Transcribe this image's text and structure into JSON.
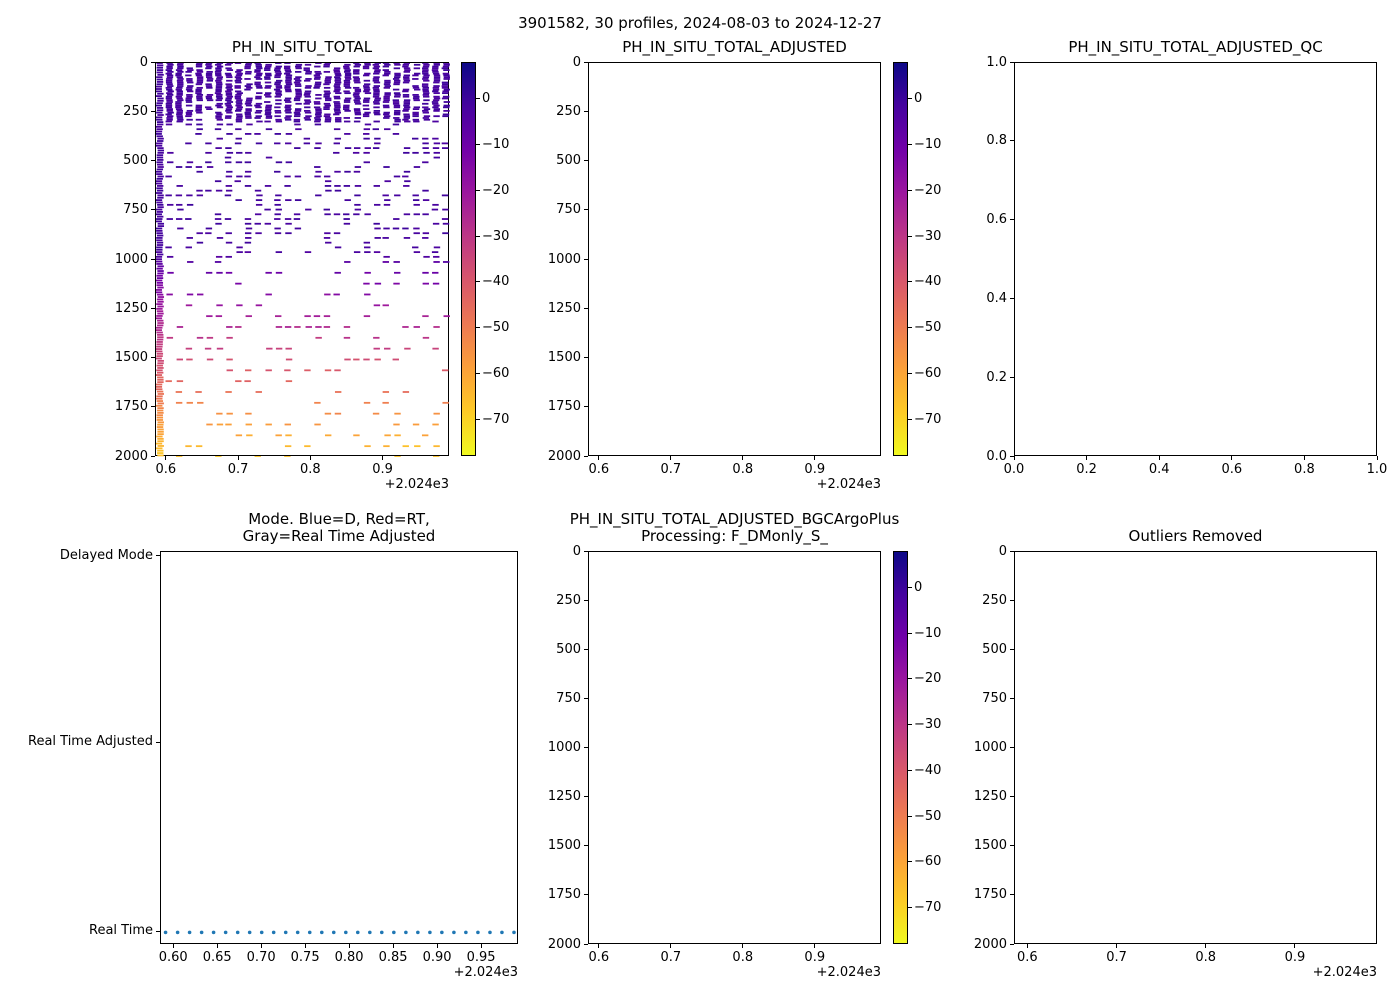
{
  "figure": {
    "suptitle": "3901582, 30 profiles, 2024-08-03 to 2024-12-27",
    "background": "#ffffff"
  },
  "colormap": {
    "stops": [
      "#0d0887",
      "#46039f",
      "#7201a8",
      "#9c179e",
      "#bd3786",
      "#d8576b",
      "#ed7953",
      "#fb9f3a",
      "#fdca26",
      "#f0f921"
    ],
    "vmin": -78,
    "vmax": 8,
    "tick_values": [
      0,
      -10,
      -20,
      -30,
      -40,
      -50,
      -60,
      -70
    ],
    "tick_labels": [
      "0",
      "−10",
      "−20",
      "−30",
      "−40",
      "−50",
      "−60",
      "−70"
    ]
  },
  "profiles": {
    "count": 30,
    "date_range": "2024-08-03 to 2024-12-27",
    "times": [
      2024.5902,
      2024.6039,
      2024.6175,
      2024.6312,
      2024.6448,
      2024.6585,
      2024.6722,
      2024.6858,
      2024.6995,
      2024.7131,
      2024.7268,
      2024.7404,
      2024.7541,
      2024.7678,
      2024.7814,
      2024.7951,
      2024.8087,
      2024.8224,
      2024.836,
      2024.8497,
      2024.8634,
      2024.877,
      2024.8907,
      2024.9043,
      2024.918,
      2024.9316,
      2024.9453,
      2024.959,
      2024.9726,
      2024.9863
    ]
  },
  "chart_data": [
    {
      "type": "scatter",
      "title": "PH_IN_SITU_TOTAL",
      "marker": "_",
      "xlim": [
        2024.585,
        2024.992
      ],
      "xticks": [
        2024.6,
        2024.7,
        2024.8,
        2024.9
      ],
      "xtick_labels": [
        "0.6",
        "0.7",
        "0.8",
        "0.9"
      ],
      "x_offset_label": "+2.024e3",
      "ylim": [
        2000,
        0
      ],
      "yticks": [
        0,
        250,
        500,
        750,
        1000,
        1250,
        1500,
        1750,
        2000
      ],
      "ytick_labels": [
        "0",
        "250",
        "500",
        "750",
        "1000",
        "1250",
        "1500",
        "1750",
        "2000"
      ],
      "has_colorbar": true,
      "points_note": "30 profile columns of horizontal dash marks; dense 0-300 dbar (values near 0, dark navy), sparser below; leftmost profile sampled full depth 0-2000 dbar with values grading from ~0 (navy) through ~-20 (purple), ~-35 (magenta) to ~-65 (orange) near 2000 dbar",
      "generation": {
        "seed": 42,
        "full_profiles": [
          0
        ],
        "full_step": 12,
        "dense_upper_profiles": [
          1,
          2
        ],
        "bands": [
          {
            "from": 0,
            "to": 300,
            "step": 9,
            "prob": 0.72
          },
          {
            "from": 312,
            "to": 1000,
            "step": 24,
            "prob": 0.32
          },
          {
            "from": 1010,
            "to": 2000,
            "step": 55,
            "prob": 0.28
          }
        ],
        "x_jitter": 0.003,
        "value_model": {
          "shallow_limit": 950,
          "shallow_noise": 3,
          "slope_per_m": 0.0629,
          "deep_noise": 4
        }
      }
    },
    {
      "type": "scatter",
      "title": "PH_IN_SITU_TOTAL_ADJUSTED",
      "points": [],
      "xlim": [
        2024.585,
        2024.992
      ],
      "xticks": [
        2024.6,
        2024.7,
        2024.8,
        2024.9
      ],
      "xtick_labels": [
        "0.6",
        "0.7",
        "0.8",
        "0.9"
      ],
      "x_offset_label": "+2.024e3",
      "ylim": [
        2000,
        0
      ],
      "yticks": [
        0,
        250,
        500,
        750,
        1000,
        1250,
        1500,
        1750,
        2000
      ],
      "ytick_labels": [
        "0",
        "250",
        "500",
        "750",
        "1000",
        "1250",
        "1500",
        "1750",
        "2000"
      ],
      "has_colorbar": true
    },
    {
      "type": "scatter",
      "title": "PH_IN_SITU_TOTAL_ADJUSTED_QC",
      "points": [],
      "xlim": [
        0,
        1
      ],
      "xticks": [
        0,
        0.2,
        0.4,
        0.6,
        0.8,
        1.0
      ],
      "xtick_labels": [
        "0.0",
        "0.2",
        "0.4",
        "0.6",
        "0.8",
        "1.0"
      ],
      "ylim": [
        0,
        1
      ],
      "yticks": [
        1.0,
        0.8,
        0.6,
        0.4,
        0.2,
        0.0
      ],
      "ytick_labels": [
        "1.0",
        "0.8",
        "0.6",
        "0.4",
        "0.2",
        "0.0"
      ],
      "has_colorbar": false
    },
    {
      "type": "scatter",
      "title": "Mode. Blue=D, Red=RT,\nGray=Real Time Adjusted",
      "y_categories": [
        "Delayed Mode",
        "Real Time Adjusted",
        "Real Time"
      ],
      "points_category": "Real Time",
      "dot_color": "#1f77b4",
      "xlim": [
        2024.585,
        2024.992
      ],
      "xticks": [
        2024.6,
        2024.65,
        2024.7,
        2024.75,
        2024.8,
        2024.85,
        2024.9,
        2024.95
      ],
      "xtick_labels": [
        "0.60",
        "0.65",
        "0.70",
        "0.75",
        "0.80",
        "0.85",
        "0.90",
        "0.95"
      ],
      "x_offset_label": "+2.024e3",
      "has_colorbar": false
    },
    {
      "type": "scatter",
      "title": "PH_IN_SITU_TOTAL_ADJUSTED_BGCArgoPlus\nProcessing: F_DMonly_S_",
      "points": [],
      "xlim": [
        2024.585,
        2024.992
      ],
      "xticks": [
        2024.6,
        2024.7,
        2024.8,
        2024.9
      ],
      "xtick_labels": [
        "0.6",
        "0.7",
        "0.8",
        "0.9"
      ],
      "x_offset_label": "+2.024e3",
      "ylim": [
        2000,
        0
      ],
      "yticks": [
        0,
        250,
        500,
        750,
        1000,
        1250,
        1500,
        1750,
        2000
      ],
      "ytick_labels": [
        "0",
        "250",
        "500",
        "750",
        "1000",
        "1250",
        "1500",
        "1750",
        "2000"
      ],
      "has_colorbar": true
    },
    {
      "type": "scatter",
      "title": "Outliers Removed",
      "points": [],
      "xlim": [
        2024.585,
        2024.992
      ],
      "xticks": [
        2024.6,
        2024.7,
        2024.8,
        2024.9
      ],
      "xtick_labels": [
        "0.6",
        "0.7",
        "0.8",
        "0.9"
      ],
      "x_offset_label": "+2.024e3",
      "ylim": [
        2000,
        0
      ],
      "yticks": [
        0,
        250,
        500,
        750,
        1000,
        1250,
        1500,
        1750,
        2000
      ],
      "ytick_labels": [
        "0",
        "250",
        "500",
        "750",
        "1000",
        "1250",
        "1500",
        "1750",
        "2000"
      ],
      "has_colorbar": false
    }
  ]
}
